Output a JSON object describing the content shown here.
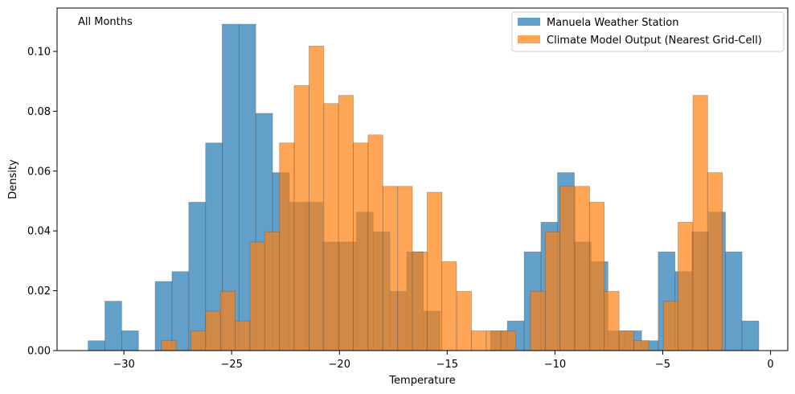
{
  "chart_data": {
    "type": "bar",
    "subtype": "overlaid-histogram",
    "title": "",
    "annotation": "All Months",
    "xlabel": "Temperature",
    "ylabel": "Density",
    "xlim": [
      -33.1,
      0.8
    ],
    "ylim": [
      0,
      0.1145
    ],
    "xticks": [
      -30,
      -25,
      -20,
      -15,
      -10,
      -5,
      0
    ],
    "xtick_labels": [
      "−30",
      "−25",
      "−20",
      "−15",
      "−10",
      "−5",
      "0"
    ],
    "yticks": [
      0.0,
      0.02,
      0.04,
      0.06,
      0.08,
      0.1
    ],
    "ytick_labels": [
      "0.00",
      "0.02",
      "0.04",
      "0.06",
      "0.08",
      "0.10"
    ],
    "grid": false,
    "legend_position": "top-right",
    "series": [
      {
        "name": "Manuela Weather Station",
        "color": "#1f77b4",
        "opacity": 0.7,
        "bin_width": 0.778,
        "bins": [
          {
            "x0": -31.66,
            "h": 0.0033
          },
          {
            "x0": -30.88,
            "h": 0.0165
          },
          {
            "x0": -30.1,
            "h": 0.0066
          },
          {
            "x0": -29.33,
            "h": 0.0
          },
          {
            "x0": -28.55,
            "h": 0.0231
          },
          {
            "x0": -27.77,
            "h": 0.0264
          },
          {
            "x0": -26.99,
            "h": 0.0496
          },
          {
            "x0": -26.21,
            "h": 0.0694
          },
          {
            "x0": -25.44,
            "h": 0.1091
          },
          {
            "x0": -24.66,
            "h": 0.1091
          },
          {
            "x0": -23.88,
            "h": 0.0793
          },
          {
            "x0": -23.1,
            "h": 0.0595
          },
          {
            "x0": -22.32,
            "h": 0.0496
          },
          {
            "x0": -21.55,
            "h": 0.0496
          },
          {
            "x0": -20.77,
            "h": 0.0363
          },
          {
            "x0": -19.99,
            "h": 0.0363
          },
          {
            "x0": -19.21,
            "h": 0.0463
          },
          {
            "x0": -18.43,
            "h": 0.0397
          },
          {
            "x0": -17.66,
            "h": 0.0198
          },
          {
            "x0": -16.88,
            "h": 0.033
          },
          {
            "x0": -16.1,
            "h": 0.0132
          },
          {
            "x0": -15.32,
            "h": 0.0
          },
          {
            "x0": -14.54,
            "h": 0.0
          },
          {
            "x0": -13.77,
            "h": 0.0
          },
          {
            "x0": -12.99,
            "h": 0.0066
          },
          {
            "x0": -12.21,
            "h": 0.0099
          },
          {
            "x0": -11.43,
            "h": 0.033
          },
          {
            "x0": -10.65,
            "h": 0.0429
          },
          {
            "x0": -9.88,
            "h": 0.0595
          },
          {
            "x0": -9.1,
            "h": 0.0363
          },
          {
            "x0": -8.32,
            "h": 0.0297
          },
          {
            "x0": -7.54,
            "h": 0.0066
          },
          {
            "x0": -6.76,
            "h": 0.0066
          },
          {
            "x0": -5.99,
            "h": 0.0033
          },
          {
            "x0": -5.21,
            "h": 0.033
          },
          {
            "x0": -4.43,
            "h": 0.0264
          },
          {
            "x0": -3.65,
            "h": 0.0397
          },
          {
            "x0": -2.87,
            "h": 0.0463
          },
          {
            "x0": -2.1,
            "h": 0.033
          },
          {
            "x0": -1.32,
            "h": 0.0099
          }
        ]
      },
      {
        "name": "Climate Model Output (Nearest Grid-Cell)",
        "color": "#ff7f0e",
        "opacity": 0.7,
        "bin_width": 0.685,
        "bins": [
          {
            "x0": -28.26,
            "h": 0.0033
          },
          {
            "x0": -27.58,
            "h": 0.0
          },
          {
            "x0": -26.89,
            "h": 0.0066
          },
          {
            "x0": -26.21,
            "h": 0.0132
          },
          {
            "x0": -25.52,
            "h": 0.0198
          },
          {
            "x0": -24.84,
            "h": 0.0099
          },
          {
            "x0": -24.15,
            "h": 0.0363
          },
          {
            "x0": -23.47,
            "h": 0.0397
          },
          {
            "x0": -22.78,
            "h": 0.0694
          },
          {
            "x0": -22.1,
            "h": 0.0886
          },
          {
            "x0": -21.41,
            "h": 0.1018
          },
          {
            "x0": -20.73,
            "h": 0.0826
          },
          {
            "x0": -20.04,
            "h": 0.0853
          },
          {
            "x0": -19.36,
            "h": 0.0694
          },
          {
            "x0": -18.67,
            "h": 0.0721
          },
          {
            "x0": -17.99,
            "h": 0.0549
          },
          {
            "x0": -17.3,
            "h": 0.0549
          },
          {
            "x0": -16.62,
            "h": 0.033
          },
          {
            "x0": -15.93,
            "h": 0.0529
          },
          {
            "x0": -15.25,
            "h": 0.0297
          },
          {
            "x0": -14.56,
            "h": 0.0198
          },
          {
            "x0": -13.88,
            "h": 0.0066
          },
          {
            "x0": -13.19,
            "h": 0.0066
          },
          {
            "x0": -12.51,
            "h": 0.0066
          },
          {
            "x0": -11.82,
            "h": 0.0
          },
          {
            "x0": -11.14,
            "h": 0.0198
          },
          {
            "x0": -10.45,
            "h": 0.0397
          },
          {
            "x0": -9.77,
            "h": 0.0549
          },
          {
            "x0": -9.08,
            "h": 0.0549
          },
          {
            "x0": -8.4,
            "h": 0.0496
          },
          {
            "x0": -7.71,
            "h": 0.0198
          },
          {
            "x0": -7.03,
            "h": 0.0066
          },
          {
            "x0": -6.34,
            "h": 0.0033
          },
          {
            "x0": -5.66,
            "h": 0.0
          },
          {
            "x0": -4.97,
            "h": 0.0165
          },
          {
            "x0": -4.29,
            "h": 0.0429
          },
          {
            "x0": -3.6,
            "h": 0.0853
          },
          {
            "x0": -2.92,
            "h": 0.0595
          },
          {
            "x0": -2.23,
            "h": 0.0
          }
        ]
      }
    ]
  }
}
